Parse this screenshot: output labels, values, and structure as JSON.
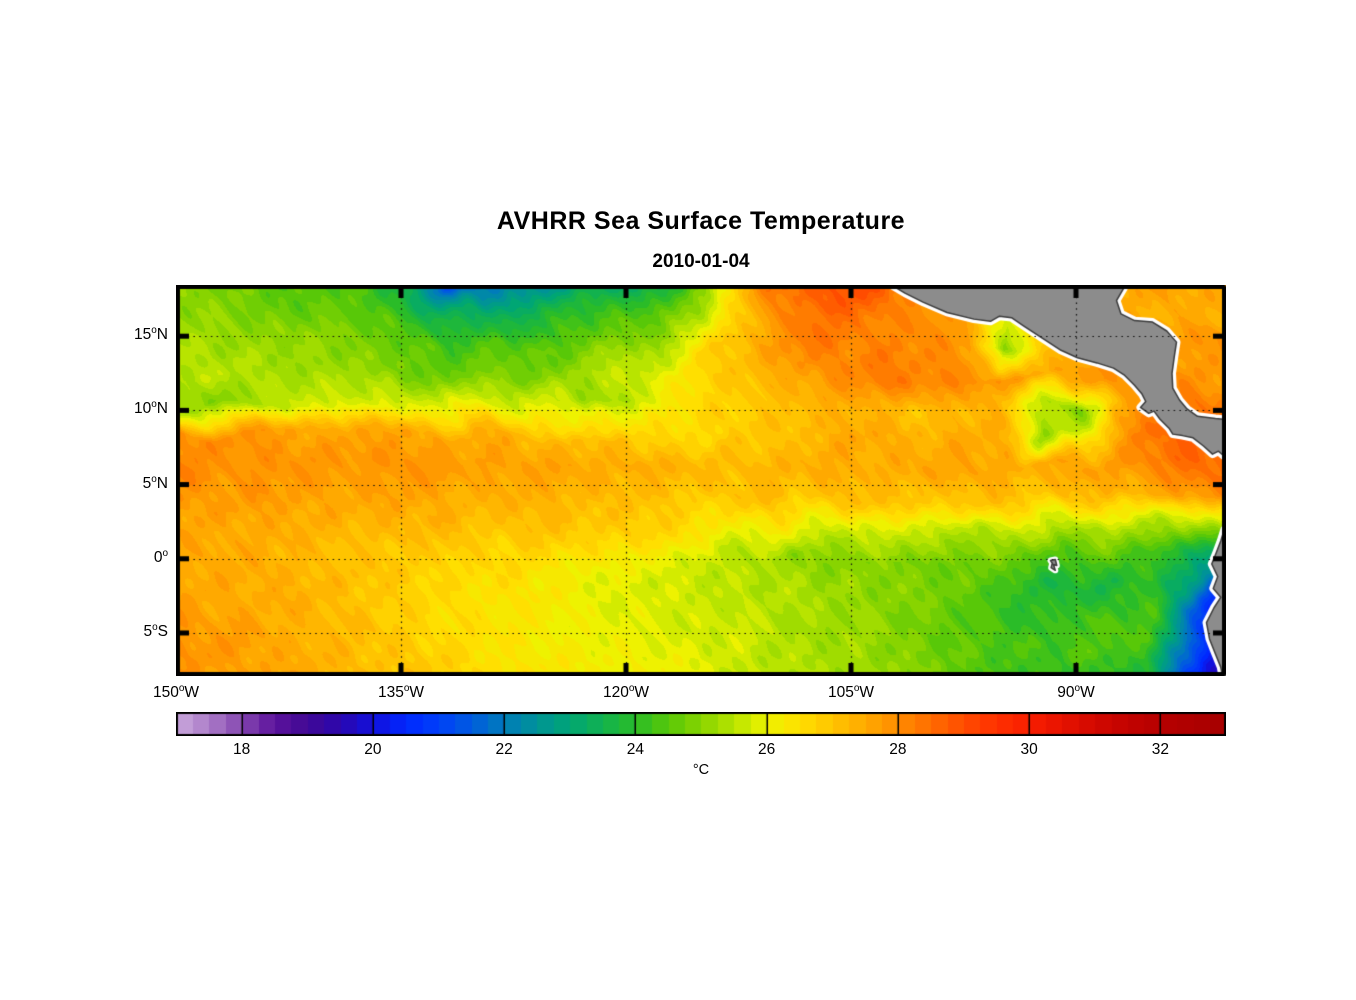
{
  "title": "AVHRR Sea Surface Temperature",
  "subtitle": "2010-01-04",
  "colors": {
    "background": "#FFFFFF",
    "land_fill": "#8C8C8C",
    "land_outline": "#3A3A3A",
    "coast_halo": "#FFFFFF",
    "frame": "#000000",
    "gridline": "#111111",
    "text": "#000000"
  },
  "chart_data": {
    "type": "heatmap",
    "title": "AVHRR Sea Surface Temperature",
    "subtitle": "2010-01-04",
    "units": "degC",
    "unit_label": "°C",
    "lon_range_deg_west": [
      150,
      80
    ],
    "lat_range_deg_north": [
      -7.9,
      18.45
    ],
    "x_ticks": [
      {
        "deg": "150",
        "sup": "o",
        "hem": "W",
        "lon": 150
      },
      {
        "deg": "135",
        "sup": "o",
        "hem": "W",
        "lon": 135
      },
      {
        "deg": "120",
        "sup": "o",
        "hem": "W",
        "lon": 120
      },
      {
        "deg": "105",
        "sup": "o",
        "hem": "W",
        "lon": 105
      },
      {
        "deg": "90",
        "sup": "o",
        "hem": "W",
        "lon": 90
      }
    ],
    "y_ticks": [
      {
        "deg": "15",
        "sup": "o",
        "hem": "N",
        "lat": 15
      },
      {
        "deg": "10",
        "sup": "o",
        "hem": "N",
        "lat": 10
      },
      {
        "deg": "5",
        "sup": "o",
        "hem": "N",
        "lat": 5
      },
      {
        "deg": "0",
        "sup": "o",
        "hem": "",
        "lat": 0
      },
      {
        "deg": "5",
        "sup": "o",
        "hem": "S",
        "lat": -5
      }
    ],
    "grid_lons_west": [
      135,
      120,
      105,
      90
    ],
    "grid_lats_north": [
      15,
      10,
      5,
      0,
      -5
    ],
    "sst_grid_degC": {
      "lons_west": [
        150,
        147.5,
        145,
        142.5,
        140,
        137.5,
        135,
        132.5,
        130,
        127.5,
        125,
        122.5,
        120,
        117.5,
        115,
        112.5,
        110,
        107.5,
        105,
        102.5,
        100,
        97.5,
        95,
        92.5,
        90,
        87.5,
        85,
        82.5,
        80
      ],
      "lats_north": [
        18.45,
        16.42,
        14.39,
        12.37,
        10.34,
        8.31,
        6.28,
        4.26,
        2.23,
        0.2,
        -1.83,
        -3.85,
        -5.88,
        -7.9
      ],
      "values": [
        [
          25.0,
          24.8,
          24.6,
          24.4,
          24.5,
          24.2,
          23.4,
          21.6,
          21.2,
          22.6,
          22.4,
          23.2,
          23.0,
          23.8,
          24.6,
          26.6,
          28.4,
          28.8,
          29.0,
          28.4,
          28.0,
          27.8,
          27.8,
          27.6,
          27.5,
          27.6,
          27.8,
          27.6,
          27.4
        ],
        [
          25.2,
          25.0,
          24.8,
          24.7,
          24.7,
          24.5,
          24.2,
          23.6,
          23.2,
          23.6,
          23.8,
          24.0,
          24.2,
          24.6,
          25.4,
          26.8,
          28.0,
          28.5,
          28.3,
          28.1,
          27.9,
          27.6,
          25.8,
          27.0,
          27.5,
          27.3,
          27.4,
          27.4,
          27.4
        ],
        [
          25.4,
          25.3,
          25.2,
          25.1,
          25.0,
          24.8,
          24.6,
          24.4,
          24.3,
          24.5,
          24.6,
          24.9,
          25.4,
          25.1,
          26.6,
          27.3,
          27.8,
          28.4,
          28.1,
          28.2,
          28.0,
          27.7,
          24.9,
          26.6,
          27.4,
          27.6,
          27.6,
          27.8,
          27.8
        ],
        [
          25.5,
          25.5,
          25.4,
          25.3,
          25.2,
          25.1,
          24.9,
          24.7,
          24.7,
          24.9,
          25.0,
          25.3,
          25.6,
          26.0,
          26.6,
          27.0,
          27.4,
          27.8,
          28.0,
          28.3,
          28.2,
          28.0,
          27.8,
          27.6,
          27.6,
          28.0,
          27.5,
          27.9,
          27.6
        ],
        [
          25.1,
          24.9,
          25.4,
          25.6,
          25.8,
          25.9,
          26.0,
          26.0,
          26.0,
          26.0,
          25.8,
          25.2,
          25.5,
          26.2,
          26.6,
          26.8,
          27.0,
          27.2,
          27.4,
          27.2,
          27.0,
          27.2,
          27.4,
          25.4,
          24.9,
          27.0,
          28.3,
          28.3,
          28.2
        ],
        [
          28.0,
          27.9,
          27.8,
          27.6,
          27.5,
          27.5,
          27.6,
          27.5,
          27.4,
          27.3,
          27.2,
          27.1,
          27.0,
          26.8,
          26.6,
          26.8,
          27.0,
          27.3,
          27.5,
          27.4,
          27.3,
          27.5,
          27.3,
          25.2,
          25.8,
          27.6,
          28.4,
          28.8,
          28.5
        ],
        [
          28.2,
          28.0,
          27.9,
          27.8,
          27.8,
          27.9,
          27.8,
          27.8,
          27.7,
          27.6,
          27.6,
          27.5,
          27.5,
          27.4,
          27.2,
          27.2,
          27.3,
          27.4,
          27.5,
          27.4,
          27.5,
          27.6,
          27.5,
          27.4,
          27.6,
          27.8,
          28.2,
          28.6,
          28.6
        ],
        [
          27.8,
          27.7,
          27.8,
          27.7,
          27.6,
          27.5,
          27.6,
          27.5,
          27.4,
          27.3,
          27.4,
          27.3,
          27.2,
          27.1,
          27.0,
          27.0,
          27.1,
          27.0,
          27.1,
          27.0,
          26.9,
          27.0,
          27.1,
          27.0,
          27.1,
          27.2,
          27.4,
          27.6,
          28.0
        ],
        [
          27.6,
          27.5,
          27.5,
          27.4,
          27.4,
          27.3,
          27.3,
          27.2,
          27.1,
          27.0,
          27.0,
          26.9,
          26.8,
          26.6,
          26.4,
          26.3,
          26.2,
          26.0,
          26.0,
          25.9,
          25.8,
          25.7,
          25.6,
          25.6,
          25.5,
          25.4,
          25.4,
          25.6,
          26.0
        ],
        [
          27.5,
          27.5,
          27.4,
          27.3,
          27.2,
          27.0,
          26.9,
          26.8,
          26.7,
          26.6,
          26.5,
          26.4,
          26.2,
          26.0,
          25.8,
          25.5,
          25.2,
          25.0,
          25.0,
          24.9,
          24.8,
          24.8,
          24.7,
          24.5,
          24.4,
          24.5,
          24.3,
          23.8,
          23.0
        ],
        [
          27.6,
          27.5,
          27.4,
          27.3,
          27.2,
          27.0,
          26.8,
          26.6,
          26.5,
          26.4,
          26.2,
          26.0,
          25.9,
          25.8,
          25.6,
          25.5,
          25.4,
          25.2,
          25.2,
          25.0,
          24.8,
          24.6,
          24.2,
          23.8,
          23.6,
          23.8,
          24.0,
          22.5,
          20.0
        ],
        [
          27.8,
          27.6,
          27.5,
          27.4,
          27.2,
          27.0,
          26.8,
          26.6,
          26.5,
          26.3,
          26.2,
          26.0,
          25.9,
          25.8,
          25.7,
          25.6,
          25.4,
          25.3,
          25.2,
          25.0,
          24.8,
          24.5,
          24.2,
          24.0,
          24.2,
          24.4,
          24.2,
          21.5,
          19.5
        ],
        [
          27.9,
          27.8,
          27.6,
          27.4,
          27.3,
          27.1,
          26.9,
          26.7,
          26.5,
          26.3,
          26.2,
          26.1,
          26.0,
          25.9,
          25.8,
          25.7,
          25.5,
          25.3,
          25.2,
          25.0,
          24.8,
          24.6,
          24.4,
          24.3,
          24.4,
          24.5,
          24.3,
          22.0,
          19.8
        ],
        [
          27.8,
          27.7,
          27.6,
          27.5,
          27.4,
          27.2,
          27.0,
          26.8,
          26.6,
          26.5,
          26.3,
          26.2,
          26.1,
          26.0,
          25.9,
          25.7,
          25.5,
          25.3,
          25.4,
          25.2,
          24.9,
          24.6,
          24.3,
          24.1,
          24.0,
          24.2,
          23.8,
          21.0,
          19.0
        ]
      ]
    },
    "colorbar": {
      "min": 17,
      "max": 33,
      "step": 0.25,
      "ticks": [
        18,
        20,
        22,
        24,
        26,
        28,
        30,
        32
      ],
      "label": "°C",
      "stops": [
        [
          17.0,
          "#C9A8DC"
        ],
        [
          17.5,
          "#AC7CC8"
        ],
        [
          18.0,
          "#8446B0"
        ],
        [
          18.5,
          "#5C129C"
        ],
        [
          19.0,
          "#400894"
        ],
        [
          19.5,
          "#2A06AE"
        ],
        [
          20.0,
          "#1210DC"
        ],
        [
          20.5,
          "#0028FF"
        ],
        [
          21.0,
          "#0040F8"
        ],
        [
          21.5,
          "#005CDE"
        ],
        [
          22.0,
          "#007CBA"
        ],
        [
          22.5,
          "#009397"
        ],
        [
          23.0,
          "#00A674"
        ],
        [
          23.5,
          "#12B24E"
        ],
        [
          24.0,
          "#2ABC28"
        ],
        [
          24.5,
          "#58C808"
        ],
        [
          25.0,
          "#88D400"
        ],
        [
          25.5,
          "#B8E400"
        ],
        [
          26.0,
          "#EEF200"
        ],
        [
          26.5,
          "#FFDF00"
        ],
        [
          27.0,
          "#FFC400"
        ],
        [
          27.5,
          "#FFA900"
        ],
        [
          28.0,
          "#FF8C00"
        ],
        [
          28.5,
          "#FF6C00"
        ],
        [
          29.0,
          "#FF4C00"
        ],
        [
          29.5,
          "#FF3000"
        ],
        [
          30.0,
          "#F81E00"
        ],
        [
          30.5,
          "#E61200"
        ],
        [
          31.0,
          "#D20800"
        ],
        [
          31.5,
          "#C20200"
        ],
        [
          32.0,
          "#B60000"
        ],
        [
          32.5,
          "#AE0000"
        ],
        [
          33.0,
          "#A60000"
        ]
      ]
    },
    "land_polygons": [
      {
        "name": "central-america",
        "points": [
          [
            103.2,
            19.5
          ],
          [
            102.3,
            18.45
          ],
          [
            101.4,
            17.9
          ],
          [
            100.2,
            17.3
          ],
          [
            98.6,
            16.6
          ],
          [
            96.8,
            16.15
          ],
          [
            95.7,
            16.0
          ],
          [
            95.1,
            16.35
          ],
          [
            94.3,
            16.25
          ],
          [
            93.5,
            15.7
          ],
          [
            92.3,
            14.9
          ],
          [
            91.0,
            14.05
          ],
          [
            89.9,
            13.55
          ],
          [
            88.6,
            13.2
          ],
          [
            87.5,
            12.85
          ],
          [
            86.8,
            12.4
          ],
          [
            86.1,
            11.7
          ],
          [
            85.6,
            11.1
          ],
          [
            85.35,
            10.6
          ],
          [
            85.7,
            10.2
          ],
          [
            85.15,
            9.8
          ],
          [
            84.8,
            9.95
          ],
          [
            84.4,
            9.4
          ],
          [
            83.8,
            8.8
          ],
          [
            83.55,
            8.4
          ],
          [
            82.9,
            8.3
          ],
          [
            82.2,
            8.15
          ],
          [
            81.5,
            7.6
          ],
          [
            80.9,
            7.05
          ],
          [
            80.5,
            7.25
          ],
          [
            80.1,
            6.9
          ],
          [
            79.0,
            6.85
          ],
          [
            79.0,
            9.3
          ],
          [
            80.7,
            9.45
          ],
          [
            81.9,
            9.6
          ],
          [
            82.6,
            10.1
          ],
          [
            83.1,
            10.7
          ],
          [
            83.55,
            11.5
          ],
          [
            83.6,
            12.5
          ],
          [
            83.45,
            13.6
          ],
          [
            83.3,
            14.6
          ],
          [
            83.95,
            15.35
          ],
          [
            84.9,
            15.95
          ],
          [
            86.1,
            16.05
          ],
          [
            87.0,
            16.5
          ],
          [
            87.3,
            17.4
          ],
          [
            86.7,
            18.45
          ],
          [
            86.5,
            19.5
          ]
        ]
      },
      {
        "name": "south-america",
        "points": [
          [
            79.0,
            2.2
          ],
          [
            80.1,
            2.0
          ],
          [
            80.35,
            1.2
          ],
          [
            80.65,
            0.4
          ],
          [
            80.95,
            -0.35
          ],
          [
            80.55,
            -1.2
          ],
          [
            80.85,
            -2.0
          ],
          [
            80.35,
            -2.6
          ],
          [
            80.8,
            -3.3
          ],
          [
            81.3,
            -4.3
          ],
          [
            81.1,
            -5.4
          ],
          [
            80.75,
            -6.3
          ],
          [
            80.35,
            -7.3
          ],
          [
            80.1,
            -8.6
          ],
          [
            79.0,
            -8.6
          ]
        ]
      },
      {
        "name": "galapagos-islands",
        "points": [
          [
            91.7,
            -0.12
          ],
          [
            91.38,
            -0.05
          ],
          [
            91.28,
            -0.45
          ],
          [
            91.5,
            -0.38
          ],
          [
            91.38,
            -0.78
          ],
          [
            91.66,
            -0.6
          ],
          [
            91.58,
            -0.3
          ]
        ]
      }
    ]
  }
}
